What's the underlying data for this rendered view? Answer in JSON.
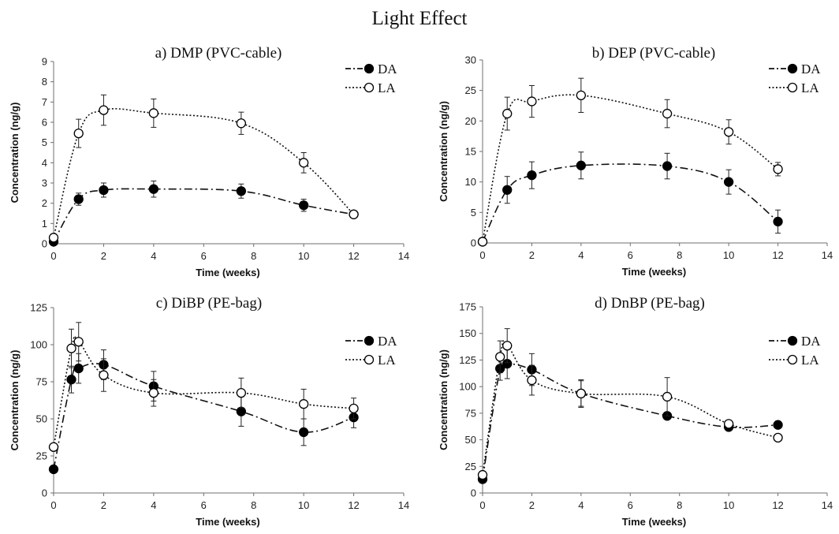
{
  "figure": {
    "title": "Light Effect"
  },
  "chart_data": [
    {
      "type": "line",
      "title": "a) DMP (PVC-cable)",
      "xlabel": "Time (weeks)",
      "ylabel": "Concentration (ng/g)",
      "xlim": [
        0,
        14
      ],
      "xticks": [
        0,
        2,
        4,
        6,
        8,
        10,
        12,
        14
      ],
      "ylim": [
        0,
        9
      ],
      "yticks": [
        0,
        1,
        2,
        3,
        4,
        5,
        6,
        7,
        8,
        9
      ],
      "legend_position": "top-right",
      "series": [
        {
          "name": "DA",
          "marker": "filled-circle",
          "line": "dash-dot",
          "x": [
            0,
            1,
            2,
            4,
            7.5,
            10,
            12
          ],
          "y": [
            0.1,
            2.2,
            2.65,
            2.7,
            2.6,
            1.9,
            1.45
          ],
          "err": [
            0.05,
            0.3,
            0.35,
            0.4,
            0.35,
            0.3,
            0.05
          ]
        },
        {
          "name": "LA",
          "marker": "open-circle",
          "line": "dotted",
          "x": [
            0,
            1,
            2,
            4,
            7.5,
            10,
            12
          ],
          "y": [
            0.3,
            5.45,
            6.6,
            6.45,
            5.95,
            4.0,
            1.45
          ],
          "err": [
            0.05,
            0.7,
            0.75,
            0.7,
            0.55,
            0.5,
            0.05
          ]
        }
      ]
    },
    {
      "type": "line",
      "title": "b) DEP (PVC-cable)",
      "xlabel": "Time (weeks)",
      "ylabel": "Concentration (ng/g)",
      "xlim": [
        0,
        14
      ],
      "xticks": [
        0,
        2,
        4,
        6,
        8,
        10,
        12,
        14
      ],
      "ylim": [
        0,
        30
      ],
      "yticks": [
        0,
        5,
        10,
        15,
        20,
        25,
        30
      ],
      "legend_position": "top-right",
      "series": [
        {
          "name": "DA",
          "marker": "filled-circle",
          "line": "dash-dot",
          "x": [
            0,
            1,
            2,
            4,
            7.5,
            10,
            12
          ],
          "y": [
            0.2,
            8.7,
            11.1,
            12.7,
            12.6,
            10.0,
            3.5
          ],
          "err": [
            0.1,
            2.2,
            2.2,
            2.2,
            2.1,
            2.0,
            1.9
          ]
        },
        {
          "name": "LA",
          "marker": "open-circle",
          "line": "dotted",
          "x": [
            0,
            1,
            2,
            4,
            7.5,
            10,
            12
          ],
          "y": [
            0.2,
            21.2,
            23.2,
            24.2,
            21.2,
            18.2,
            12.1
          ],
          "err": [
            0.1,
            2.7,
            2.6,
            2.8,
            2.3,
            2.0,
            1.1
          ]
        }
      ]
    },
    {
      "type": "line",
      "title": "c) DiBP (PE-bag)",
      "xlabel": "Time (weeks)",
      "ylabel": "Concentration (ng/g)",
      "xlim": [
        0,
        14
      ],
      "xticks": [
        0,
        2,
        4,
        6,
        8,
        10,
        12,
        14
      ],
      "ylim": [
        0,
        125
      ],
      "yticks": [
        0,
        25,
        50,
        75,
        100,
        125
      ],
      "legend_position": "top-right",
      "series": [
        {
          "name": "DA",
          "marker": "filled-circle",
          "line": "dash-dot",
          "x": [
            0,
            0.71,
            1,
            2,
            4,
            7.5,
            10,
            12
          ],
          "y": [
            16,
            76.5,
            84,
            86.5,
            72,
            55,
            41,
            51
          ],
          "err": [
            0,
            9,
            10,
            10,
            10,
            10,
            9,
            7
          ]
        },
        {
          "name": "LA",
          "marker": "open-circle",
          "line": "dotted",
          "x": [
            0,
            0.71,
            1,
            2,
            4,
            7.5,
            10,
            12
          ],
          "y": [
            31,
            97.5,
            102,
            79.5,
            67.5,
            67.5,
            60,
            57
          ],
          "err": [
            2,
            13,
            13,
            11,
            9,
            10,
            10,
            7
          ]
        }
      ]
    },
    {
      "type": "line",
      "title": "d) DnBP (PE-bag)",
      "xlabel": "Time (weeks)",
      "ylabel": "Concentration (ng/g)",
      "xlim": [
        0,
        14
      ],
      "xticks": [
        0,
        2,
        4,
        6,
        8,
        10,
        12,
        14
      ],
      "ylim": [
        0,
        175
      ],
      "yticks": [
        0,
        25,
        50,
        75,
        100,
        125,
        150,
        175
      ],
      "legend_position": "top-right",
      "series": [
        {
          "name": "DA",
          "marker": "filled-circle",
          "line": "dash-dot",
          "x": [
            0,
            0.71,
            1,
            2,
            4,
            7.5,
            10,
            12
          ],
          "y": [
            13,
            117,
            121.5,
            116,
            93.5,
            72.5,
            62,
            64
          ],
          "err": [
            0,
            11,
            14,
            15,
            12,
            0,
            0,
            0
          ]
        },
        {
          "name": "LA",
          "marker": "open-circle",
          "line": "dotted",
          "x": [
            0,
            0.71,
            1,
            2,
            4,
            7.5,
            10,
            12
          ],
          "y": [
            17,
            128,
            138.5,
            106,
            93.5,
            90.5,
            65,
            52
          ],
          "err": [
            2,
            15,
            16,
            14,
            13,
            18,
            0,
            0
          ]
        }
      ]
    }
  ]
}
